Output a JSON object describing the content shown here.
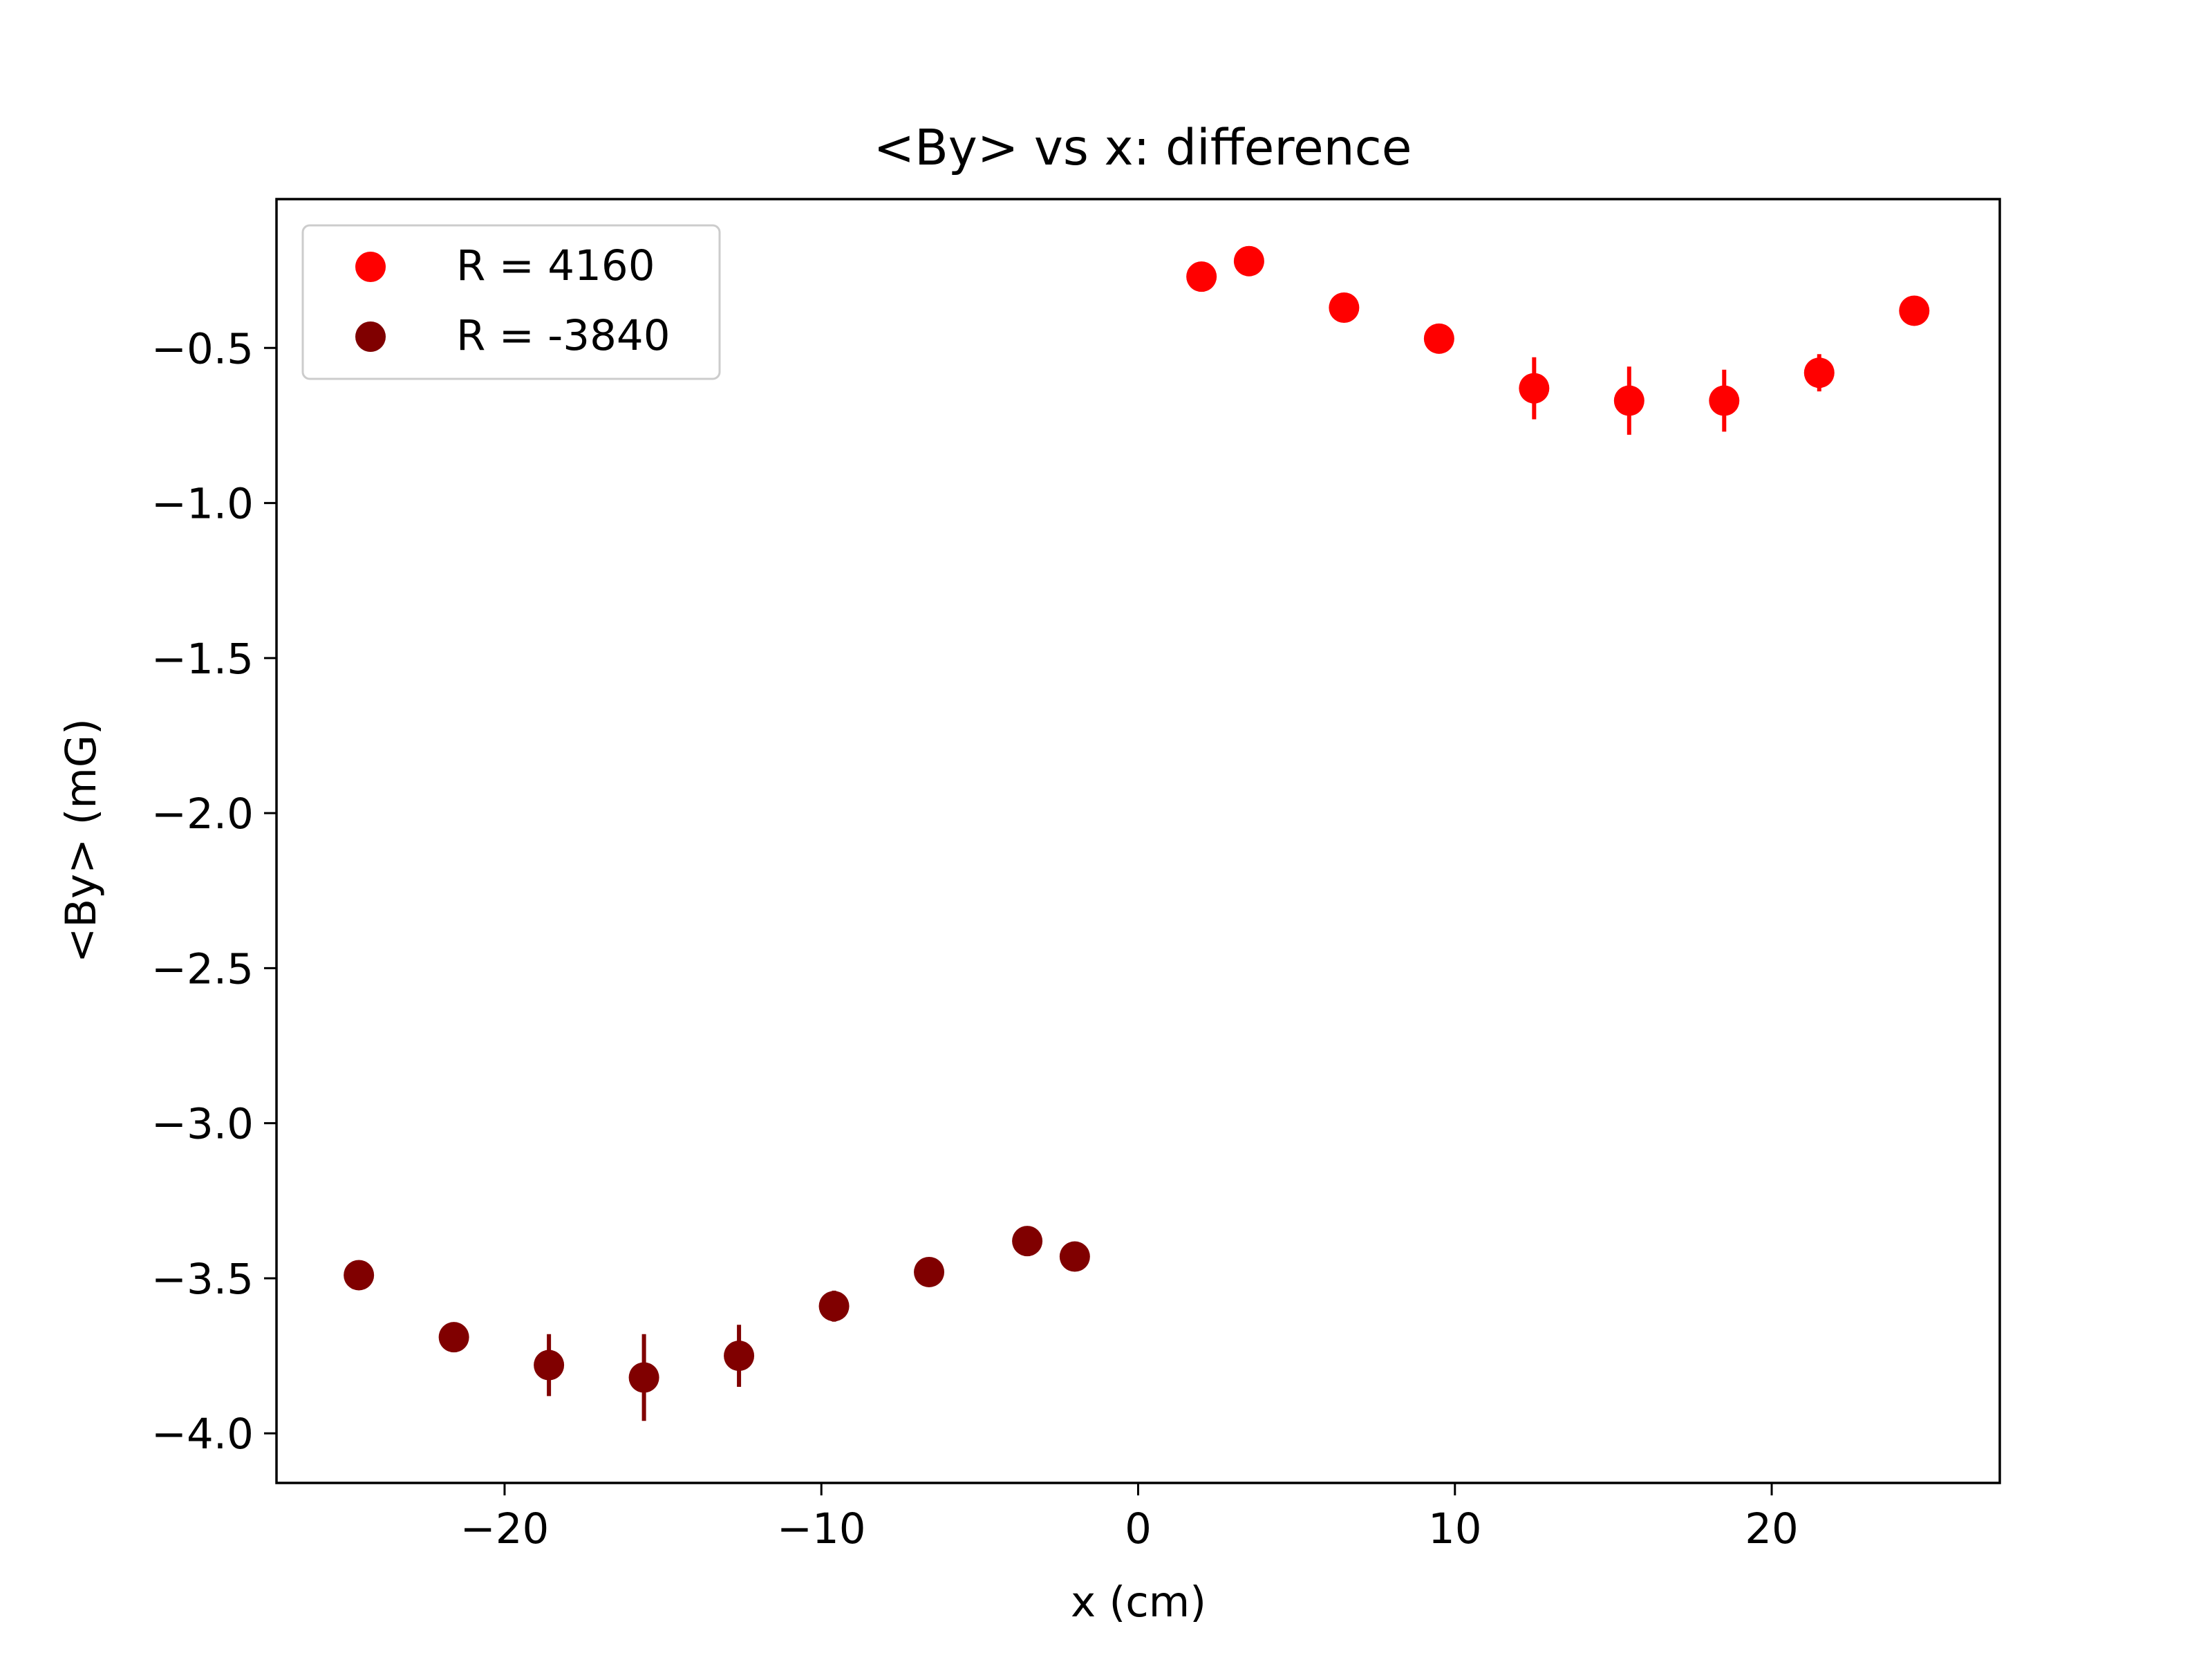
{
  "chart_data": {
    "type": "scatter",
    "title": "<By> vs x: difference",
    "xlabel": "x (cm)",
    "ylabel": "<By> (mG)",
    "xlim": [
      -27.2,
      27.2
    ],
    "ylim": [
      -4.16,
      -0.02
    ],
    "x_ticks": [
      -20,
      -10,
      0,
      10,
      20
    ],
    "x_tick_labels": [
      "−20",
      "−10",
      "0",
      "10",
      "20"
    ],
    "y_ticks": [
      -0.5,
      -1.0,
      -1.5,
      -2.0,
      -2.5,
      -3.0,
      -3.5,
      -4.0
    ],
    "y_tick_labels": [
      "−0.5",
      "−1.0",
      "−1.5",
      "−2.0",
      "−2.5",
      "−3.0",
      "−3.5",
      "−4.0"
    ],
    "grid": false,
    "legend_position": "top-left",
    "series": [
      {
        "name": "R = 4160",
        "color": "#ff0000",
        "x": [
          2.0,
          3.5,
          6.5,
          9.5,
          12.5,
          15.5,
          18.5,
          21.5,
          24.5
        ],
        "y": [
          -0.27,
          -0.22,
          -0.37,
          -0.47,
          -0.63,
          -0.67,
          -0.67,
          -0.58,
          -0.38
        ],
        "yerr": [
          0.01,
          0.01,
          0.01,
          0.01,
          0.1,
          0.11,
          0.1,
          0.06,
          0.01
        ]
      },
      {
        "name": "R = -3840",
        "color": "#800000",
        "x": [
          -24.6,
          -21.6,
          -18.6,
          -15.6,
          -12.6,
          -9.6,
          -6.6,
          -3.5,
          -2.0
        ],
        "y": [
          -3.49,
          -3.69,
          -3.78,
          -3.82,
          -3.75,
          -3.59,
          -3.48,
          -3.38,
          -3.43
        ],
        "yerr": [
          0.01,
          0.01,
          0.1,
          0.14,
          0.1,
          0.05,
          0.01,
          0.01,
          0.01
        ]
      }
    ]
  }
}
